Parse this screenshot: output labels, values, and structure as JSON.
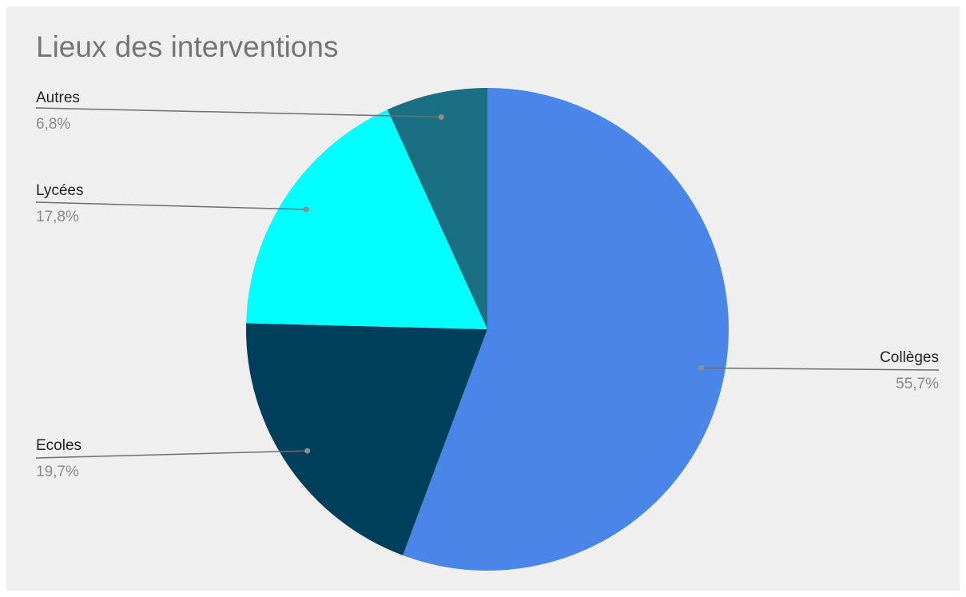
{
  "chart_data": {
    "type": "pie",
    "title": "Lieux des interventions",
    "slices": [
      {
        "label": "Collèges",
        "value": 55.7,
        "percent_label": "55,7%",
        "color": "#4a86e8"
      },
      {
        "label": "Ecoles",
        "value": 19.7,
        "percent_label": "19,7%",
        "color": "#003f5c"
      },
      {
        "label": "Lycées",
        "value": 17.8,
        "percent_label": "17,8%",
        "color": "#00ffff"
      },
      {
        "label": "Autres",
        "value": 6.8,
        "percent_label": "6,8%",
        "color": "#1b6f82"
      }
    ],
    "start_angle": "top",
    "direction": "clockwise",
    "legend": "none",
    "label_style": "callout-lines"
  }
}
